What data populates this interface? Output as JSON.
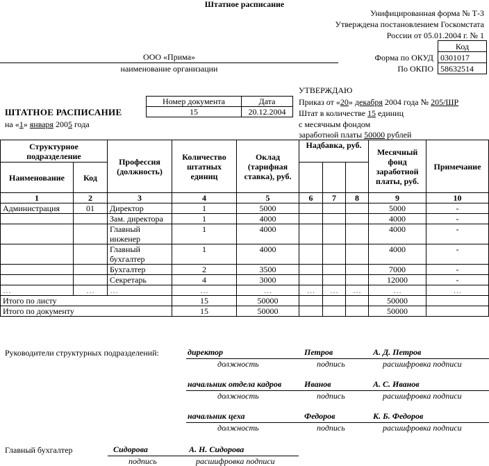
{
  "title": "Штатное расписание",
  "form_info": [
    "Унифицированная форма № Т-3",
    "Утверждена постановлением Госкомстата",
    "России от 05.01.2004 г. № 1"
  ],
  "codes": {
    "header": "Код",
    "okud_label": "Форма по ОКУД",
    "okud": "0301017",
    "okpo_label": "По ОКПО",
    "okpo": "58632514"
  },
  "org": {
    "name": "ООО «Прима»",
    "caption": "наименование организации"
  },
  "doc": {
    "title": "ШТАТНОЕ РАСПИСАНИЕ",
    "date_prefix": "на «",
    "day": "1",
    "mid": "» ",
    "month": "января",
    "year_prefix": " 200",
    "year_digit": "5",
    "suffix": " года",
    "number_label": "Номер документа",
    "date_label": "Дата",
    "number": "15",
    "date": "20.12.2004"
  },
  "approve": {
    "title": "УТВЕРЖДАЮ",
    "order_prefix": "Приказ от «",
    "order_day": "20",
    "order_mid": "» ",
    "order_month": "декабря",
    "order_year": " 2004 года № ",
    "order_no": "205/ШР",
    "staff_prefix": "Штат в количестве ",
    "staff_count": "15",
    "staff_suffix": " единиц",
    "fund_line1": "с месячным фондом",
    "fund_prefix": "заработной платы ",
    "fund": "50000",
    "fund_suffix": " рублей"
  },
  "table": {
    "h_struct": "Структурное подразделение",
    "h_name": "Наименование",
    "h_code": "Код",
    "h_prof": "Профессия (должность)",
    "h_count": "Количество штатных единиц",
    "h_salary": "Оклад (тарифная ставка), руб.",
    "h_bonus": "Надбавка, руб.",
    "h_fund": "Месячный фонд заработной платы, руб.",
    "h_note": "Примечание",
    "nums": [
      "1",
      "2",
      "3",
      "4",
      "5",
      "6",
      "7",
      "8",
      "9",
      "10"
    ],
    "rows": [
      [
        "Администрация",
        "01",
        "Директор",
        "1",
        "5000",
        "",
        "",
        "",
        "5000",
        "-"
      ],
      [
        "",
        "",
        "Зам. директора",
        "1",
        "4000",
        "",
        "",
        "",
        "4000",
        "-"
      ],
      [
        "",
        "",
        "Главный инженер",
        "1",
        "4000",
        "",
        "",
        "",
        "4000",
        "-"
      ],
      [
        "",
        "",
        "Главный бухгалтер",
        "1",
        "4000",
        "",
        "",
        "",
        "4000",
        "-"
      ],
      [
        "",
        "",
        "Бухгалтер",
        "2",
        "3500",
        "",
        "",
        "",
        "7000",
        "-"
      ],
      [
        "",
        "",
        "Секретарь",
        "4",
        "3000",
        "",
        "",
        "",
        "12000",
        "-"
      ],
      [
        "…",
        "…",
        "…",
        "…",
        "…",
        "…",
        "…",
        "…",
        "…",
        "…"
      ]
    ],
    "totals": [
      {
        "label": "Итого по листу",
        "count": "15",
        "salary": "50000",
        "fund": "50000"
      },
      {
        "label": "Итого по документу",
        "count": "15",
        "salary": "50000",
        "fund": "50000"
      }
    ]
  },
  "signatures": {
    "heads_label": "Руководители структурных подразделений:",
    "heads": [
      {
        "position": "директор",
        "signature": "Петров",
        "name": "А. Д. Петров"
      },
      {
        "position": "начальник отдела кадров",
        "signature": "Иванов",
        "name": "А. С. Иванов"
      },
      {
        "position": "начальник цеха",
        "signature": "Федоров",
        "name": "К. Б. Федоров"
      }
    ],
    "cap_position": "должность",
    "cap_signature": "подпись",
    "cap_name": "расшифровка подписи",
    "accountant_label": "Главный бухгалтер",
    "accountant_signature": "Сидорова",
    "accountant_name": "А. Н. Сидорова"
  }
}
